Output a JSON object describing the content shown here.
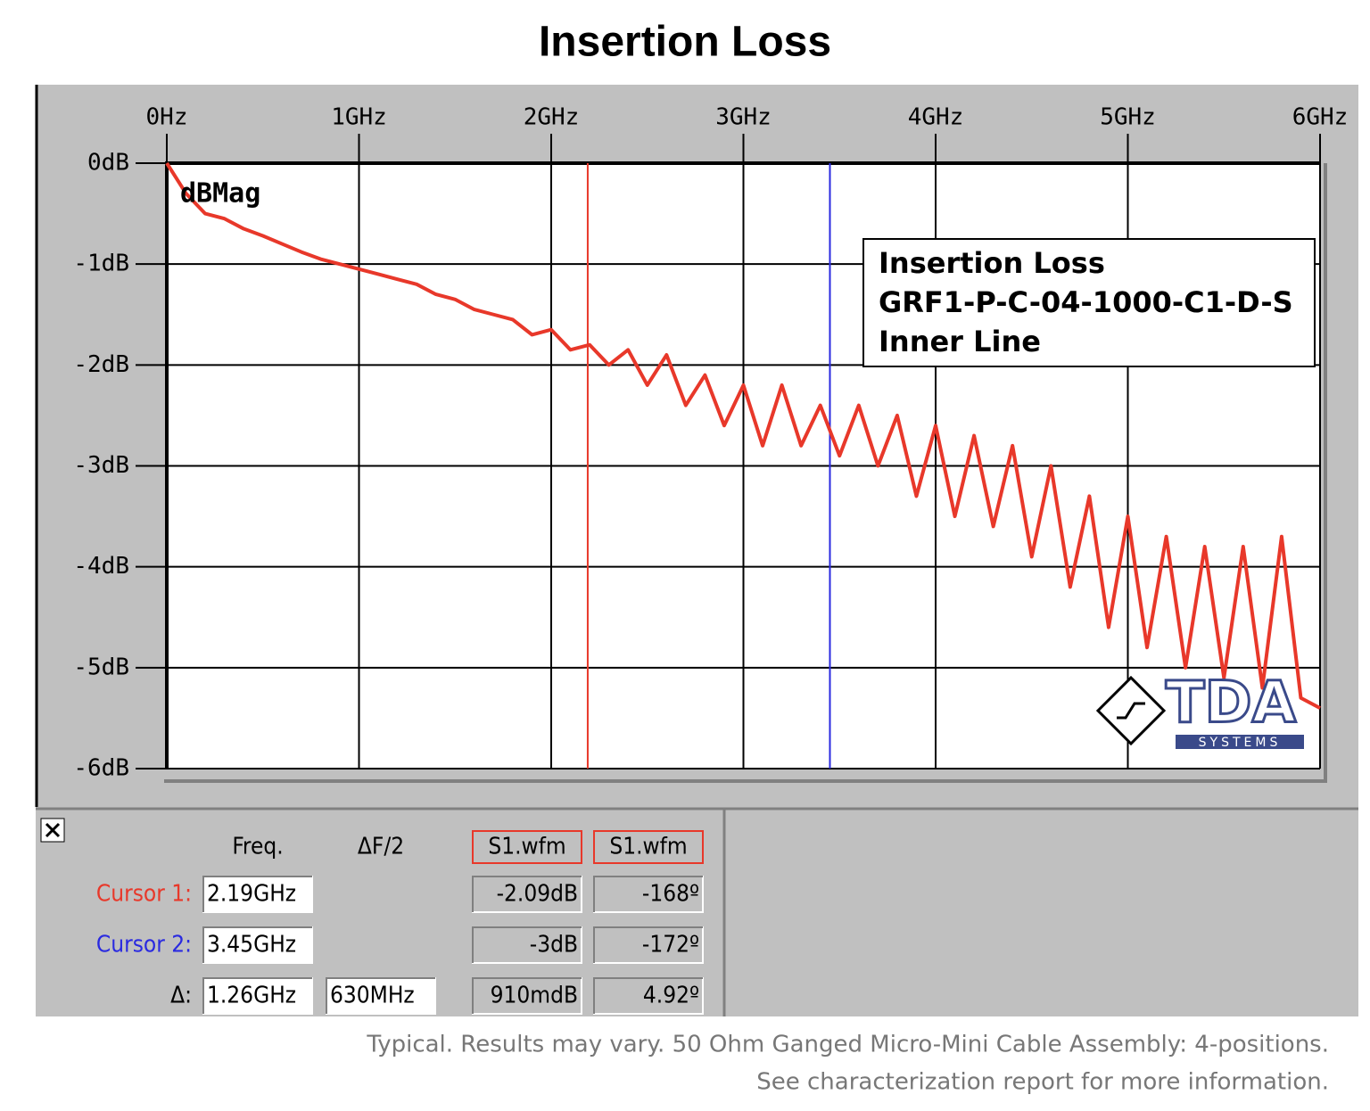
{
  "chart_data": {
    "type": "line",
    "title": "Insertion Loss",
    "y_label": "dBMag",
    "color": "#e8382a",
    "xlim": [
      0,
      6
    ],
    "ylim": [
      -6,
      0
    ],
    "grid": true,
    "xticks": [
      {
        "value": 0,
        "label": "0Hz"
      },
      {
        "value": 1,
        "label": "1GHz"
      },
      {
        "value": 2,
        "label": "2GHz"
      },
      {
        "value": 3,
        "label": "3GHz"
      },
      {
        "value": 4,
        "label": "4GHz"
      },
      {
        "value": 5,
        "label": "5GHz"
      },
      {
        "value": 6,
        "label": "6GHz"
      }
    ],
    "yticks": [
      {
        "value": 0,
        "label": "0dB"
      },
      {
        "value": -1,
        "label": "-1dB"
      },
      {
        "value": -2,
        "label": "-2dB"
      },
      {
        "value": -3,
        "label": "-3dB"
      },
      {
        "value": -4,
        "label": "-4dB"
      },
      {
        "value": -5,
        "label": "-5dB"
      },
      {
        "value": -6,
        "label": "-6dB"
      }
    ],
    "legend_lines": [
      "Insertion Loss",
      "GRF1-P-C-04-1000-C1-D-S",
      "Inner Line"
    ],
    "cursors": [
      {
        "x": 2.19,
        "color": "#e8382a"
      },
      {
        "x": 3.45,
        "color": "#2a2ae0"
      }
    ],
    "x": [
      0,
      0.1,
      0.2,
      0.3,
      0.4,
      0.5,
      0.6,
      0.7,
      0.8,
      0.9,
      1.0,
      1.1,
      1.2,
      1.3,
      1.4,
      1.5,
      1.6,
      1.7,
      1.8,
      1.9,
      2.0,
      2.1,
      2.2,
      2.3,
      2.4,
      2.5,
      2.6,
      2.7,
      2.8,
      2.9,
      3.0,
      3.1,
      3.2,
      3.3,
      3.4,
      3.5,
      3.6,
      3.7,
      3.8,
      3.9,
      4.0,
      4.1,
      4.2,
      4.3,
      4.4,
      4.5,
      4.6,
      4.7,
      4.8,
      4.9,
      5.0,
      5.1,
      5.2,
      5.3,
      5.4,
      5.5,
      5.6,
      5.7,
      5.8,
      5.9,
      6.0
    ],
    "values": [
      0,
      -0.3,
      -0.5,
      -0.55,
      -0.65,
      -0.72,
      -0.8,
      -0.88,
      -0.95,
      -1.0,
      -1.05,
      -1.1,
      -1.15,
      -1.2,
      -1.3,
      -1.35,
      -1.45,
      -1.5,
      -1.55,
      -1.7,
      -1.65,
      -1.85,
      -1.8,
      -2.0,
      -1.85,
      -2.2,
      -1.9,
      -2.4,
      -2.1,
      -2.6,
      -2.2,
      -2.8,
      -2.2,
      -2.8,
      -2.4,
      -2.9,
      -2.4,
      -3.0,
      -2.5,
      -3.3,
      -2.6,
      -3.5,
      -2.7,
      -3.6,
      -2.8,
      -3.9,
      -3.0,
      -4.2,
      -3.3,
      -4.6,
      -3.5,
      -4.8,
      -3.7,
      -5.0,
      -3.8,
      -5.1,
      -3.8,
      -5.2,
      -3.7,
      -5.3,
      -5.4
    ]
  },
  "logo": {
    "name": "TDA",
    "sub": "SYSTEMS"
  },
  "readout": {
    "headers": [
      "Freq.",
      "ΔF/2",
      "S1.wfm",
      "S1.wfm"
    ],
    "rows": [
      {
        "label": "Cursor 1:",
        "freq": "2.19GHz",
        "mag": "-2.09dB",
        "phase": "-168º"
      },
      {
        "label": "Cursor 2:",
        "freq": "3.45GHz",
        "mag": "-3dB",
        "phase": "-172º"
      },
      {
        "label": "Δ:",
        "freq": "1.26GHz",
        "half": "630MHz",
        "mag": "910mdB",
        "phase": "4.92º"
      }
    ]
  },
  "footnote": [
    "Typical. Results may vary.  50 Ohm Ganged Micro-Mini Cable Assembly:  4-positions.",
    "See characterization report for more information."
  ]
}
